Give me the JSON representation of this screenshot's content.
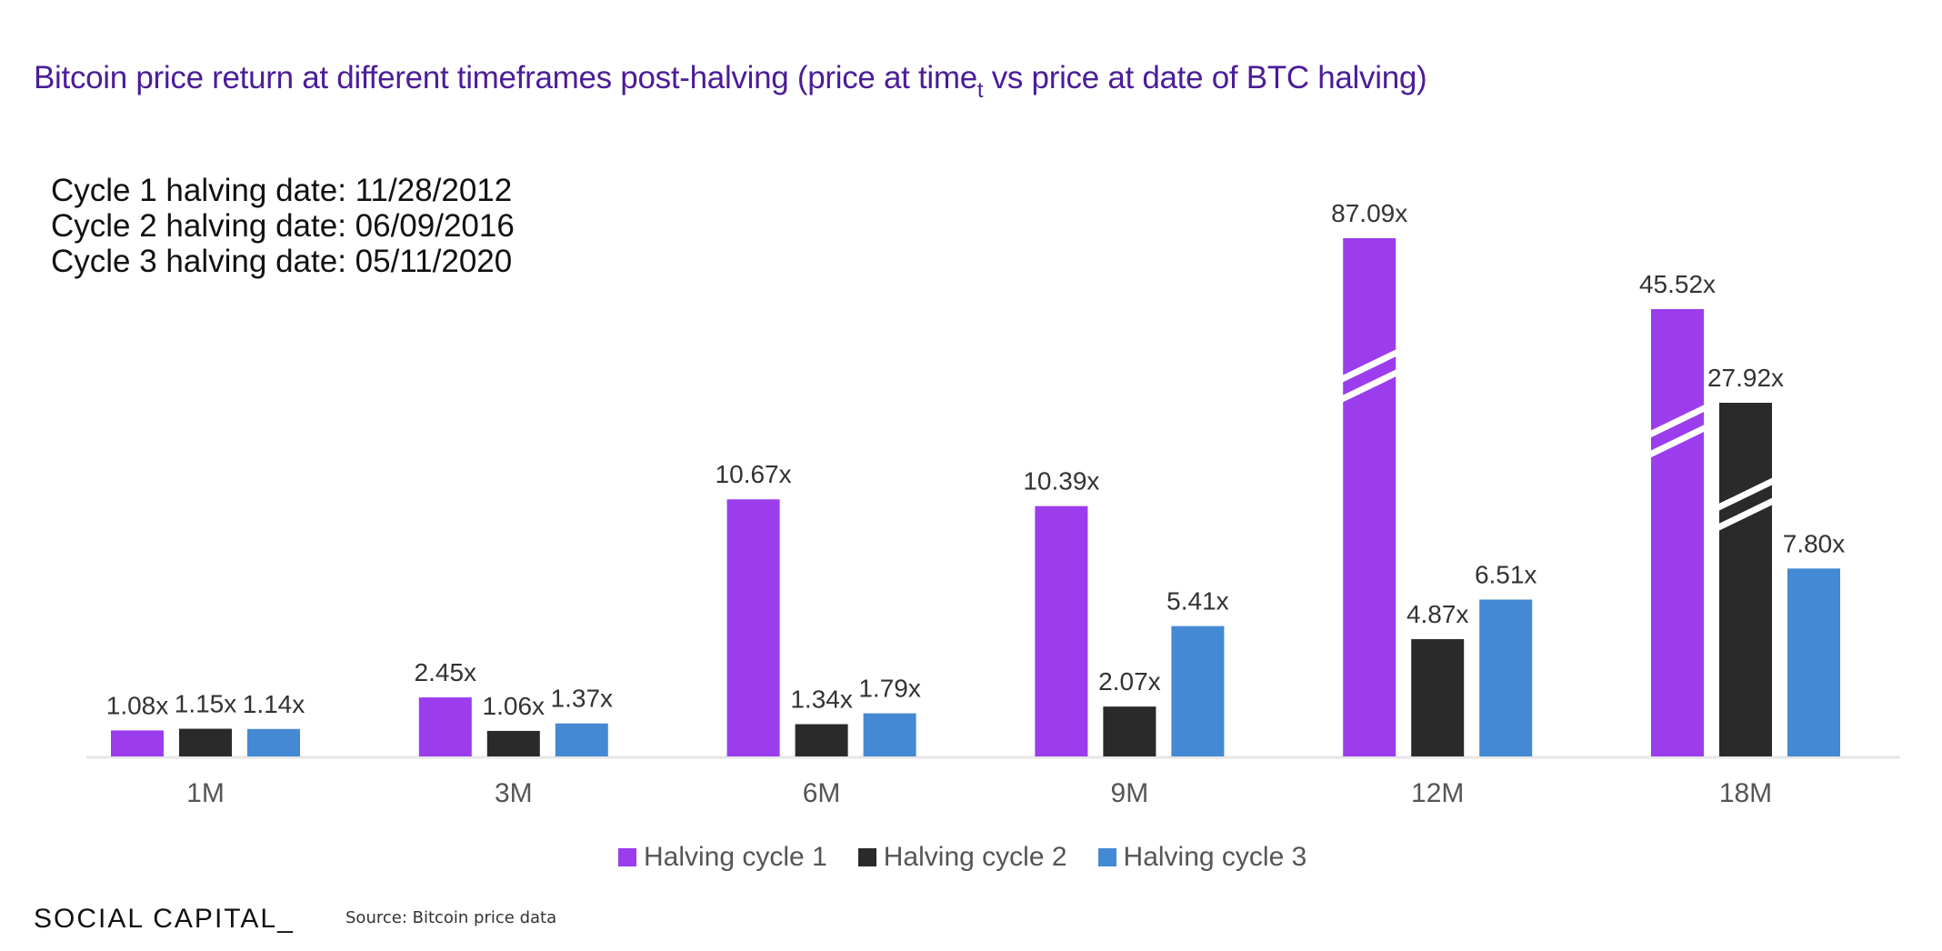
{
  "title": {
    "main": "Bitcoin price return at different timeframes post-halving (price at time",
    "subscript": "t",
    "rest": " vs price at date of BTC halving)"
  },
  "notes": [
    "Cycle 1 halving date: 11/28/2012",
    "Cycle 2 halving date: 06/09/2016",
    "Cycle 3 halving date: 05/11/2020"
  ],
  "footer": {
    "logo": "SOCIAL CAPITAL_",
    "source": "Source: Bitcoin price data"
  },
  "colors": {
    "title": "#4b1d99",
    "cycle1": "#9b3ded",
    "cycle2": "#2a2a2a",
    "cycle3": "#4489d4",
    "axis": "#e6e6e6"
  },
  "chart_data": {
    "type": "bar",
    "title": "Bitcoin price return at different timeframes post-halving (price at time_t vs price at date of BTC halving)",
    "xlabel": "",
    "ylabel": "",
    "categories": [
      "1M",
      "3M",
      "6M",
      "9M",
      "12M",
      "18M"
    ],
    "series": [
      {
        "name": "Halving cycle 1",
        "color": "#9b3ded",
        "values": [
          1.08,
          2.45,
          10.67,
          10.39,
          87.09,
          45.52
        ],
        "labels": [
          "1.08x",
          "2.45x",
          "10.67x",
          "10.39x",
          "87.09x",
          "45.52x"
        ],
        "broken_axis": [
          false,
          false,
          false,
          false,
          true,
          true
        ]
      },
      {
        "name": "Halving cycle 2",
        "color": "#2a2a2a",
        "values": [
          1.15,
          1.06,
          1.34,
          2.07,
          4.87,
          27.92
        ],
        "labels": [
          "1.15x",
          "1.06x",
          "1.34x",
          "2.07x",
          "4.87x",
          "27.92x"
        ],
        "broken_axis": [
          false,
          false,
          false,
          false,
          false,
          true
        ]
      },
      {
        "name": "Halving cycle 3",
        "color": "#4489d4",
        "values": [
          1.14,
          1.37,
          1.79,
          5.41,
          6.51,
          7.8
        ],
        "labels": [
          "1.14x",
          "1.37x",
          "1.79x",
          "5.41x",
          "6.51x",
          "7.80x"
        ],
        "broken_axis": [
          false,
          false,
          false,
          false,
          false,
          false
        ]
      }
    ],
    "legend": "bottom-center",
    "grid": false,
    "y_axis_visible": false
  }
}
